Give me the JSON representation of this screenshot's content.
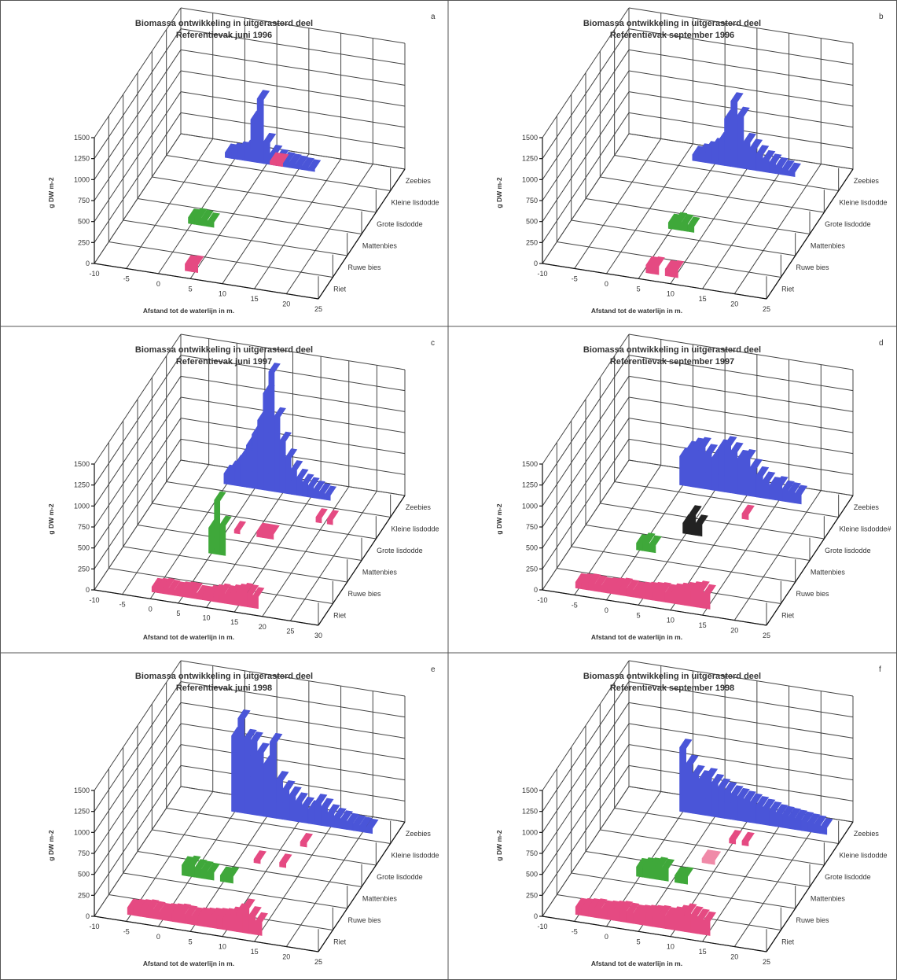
{
  "chart_data": [
    {
      "type": "bar3d",
      "panel_label": "a",
      "title": [
        "Biomassa ontwikkeling in uitgerasterd deel",
        "Referentievak juni 1996"
      ],
      "xlabel": "Afstand tot de waterlijn in m.",
      "ylabel": "g DW m-2",
      "xticks": [
        "-10",
        "-5",
        "0",
        "5",
        "10",
        "15",
        "20",
        "25"
      ],
      "zticks": [
        "0",
        "250",
        "500",
        "750",
        "1000",
        "1250",
        "1500"
      ],
      "depth_categories": [
        "Riet",
        "Ruwe bies",
        "Mattenbies",
        "Grote lisdodde",
        "Kleine lisdodde",
        "Zeebies"
      ],
      "series": [
        {
          "species": "Zeebies",
          "color": "#4a55d8",
          "x": [
            -1,
            0,
            1,
            2,
            3,
            4,
            5,
            6,
            7,
            8,
            9,
            10,
            11,
            12
          ],
          "values": [
            60,
            80,
            110,
            140,
            500,
            760,
            260,
            130,
            90,
            70,
            60,
            50,
            40,
            30
          ]
        },
        {
          "species": "Zeebies",
          "color": "#e54a82",
          "x": [
            6,
            7
          ],
          "values": [
            40,
            40
          ]
        },
        {
          "species": "Mattenbies",
          "color": "#3fa83a",
          "x": [
            0,
            1,
            2,
            3
          ],
          "values": [
            70,
            90,
            80,
            60
          ]
        },
        {
          "species": "Riet",
          "color": "#e54a82",
          "x": [
            4,
            5
          ],
          "values": [
            80,
            90
          ]
        }
      ]
    },
    {
      "type": "bar3d",
      "panel_label": "b",
      "title": [
        "Biomassa ontwikkeling in uitgerasterd deel",
        "Referentievak september 1996"
      ],
      "xlabel": "Afstand tot de waterlijn in m.",
      "ylabel": "g DW m-2",
      "xticks": [
        "-10",
        "-5",
        "0",
        "5",
        "10",
        "15",
        "20",
        "25"
      ],
      "zticks": [
        "0",
        "250",
        "500",
        "750",
        "1000",
        "1250",
        "1500"
      ],
      "depth_categories": [
        "Riet",
        "Ruwe bies",
        "Mattenbies",
        "Grote lisdodde",
        "Kleine lisdodde",
        "Zeebies"
      ],
      "series": [
        {
          "species": "Zeebies",
          "color": "#4a55d8",
          "x": [
            2,
            3,
            4,
            5,
            6,
            7,
            8,
            9,
            10,
            11,
            12,
            13,
            14,
            15,
            16,
            17
          ],
          "values": [
            70,
            110,
            150,
            200,
            280,
            560,
            780,
            620,
            320,
            260,
            200,
            150,
            120,
            90,
            70,
            50
          ]
        },
        {
          "species": "Mattenbies",
          "color": "#3fa83a",
          "x": [
            5,
            6,
            7,
            8
          ],
          "values": [
            70,
            100,
            90,
            70
          ]
        },
        {
          "species": "Riet",
          "color": "#e54a82",
          "x": [
            6,
            7,
            9,
            10
          ],
          "values": [
            90,
            100,
            80,
            90
          ]
        }
      ]
    },
    {
      "type": "bar3d",
      "panel_label": "c",
      "title": [
        "Biomassa ontwikkeling in uitgerasterd deel",
        "Referentievak juni 1997"
      ],
      "xlabel": "Afstand tot de waterlijn in m.",
      "ylabel": "g DW m-2",
      "xticks": [
        "-10",
        "-5",
        "0",
        "5",
        "10",
        "15",
        "20",
        "25",
        "30"
      ],
      "zticks": [
        "0",
        "250",
        "500",
        "750",
        "1000",
        "1250",
        "1500"
      ],
      "depth_categories": [
        "Riet",
        "Ruwe bies",
        "Mattenbies",
        "Grote lisdodde",
        "Kleine lisdodde",
        "Zeebies"
      ],
      "series": [
        {
          "species": "Zeebies",
          "color": "#4a55d8",
          "x": [
            0,
            1,
            2,
            3,
            4,
            5,
            6,
            7,
            8,
            9,
            10,
            11,
            12,
            13,
            14,
            15,
            16,
            17,
            18
          ],
          "values": [
            120,
            180,
            260,
            360,
            500,
            640,
            820,
            1150,
            1420,
            900,
            620,
            430,
            300,
            210,
            160,
            130,
            100,
            80,
            60
          ]
        },
        {
          "species": "Kleine lisdodde",
          "color": "#e54a82",
          "x": [
            19,
            21
          ],
          "values": [
            60,
            60
          ]
        },
        {
          "species": "Grote lisdodde",
          "color": "#e54a82",
          "x": [
            7,
            11,
            12,
            13
          ],
          "values": [
            40,
            60,
            60,
            60
          ]
        },
        {
          "species": "Mattenbies",
          "color": "#3fa83a",
          "x": [
            5,
            6,
            7
          ],
          "values": [
            300,
            640,
            360
          ]
        },
        {
          "species": "Riet",
          "color": "#e54a82",
          "x": [
            0,
            1,
            2,
            3,
            4,
            5,
            6,
            7,
            8,
            9,
            10,
            11,
            12,
            13,
            14,
            15,
            16,
            17,
            18
          ],
          "values": [
            60,
            70,
            80,
            70,
            60,
            70,
            80,
            80,
            60,
            60,
            80,
            100,
            120,
            110,
            130,
            150,
            170,
            160,
            140
          ]
        }
      ]
    },
    {
      "type": "bar3d",
      "panel_label": "d",
      "title": [
        "Biomassa ontwikkeling in uitgerasterd deel",
        "Referentievak september 1997"
      ],
      "xlabel": "Afstand tot de waterlijn in m.",
      "ylabel": "g DW m-2",
      "xticks": [
        "-10",
        "-5",
        "0",
        "5",
        "10",
        "15",
        "20",
        "25"
      ],
      "zticks": [
        "0",
        "250",
        "500",
        "750",
        "1000",
        "1250",
        "1500"
      ],
      "depth_categories": [
        "Riet",
        "Ruwe bies",
        "Mattenbies",
        "Grote lisdodde",
        "Kleine lisdodde#",
        "Zeebies"
      ],
      "series": [
        {
          "species": "Zeebies",
          "color": "#4a55d8",
          "x": [
            0,
            1,
            2,
            3,
            4,
            5,
            6,
            7,
            8,
            9,
            10,
            11,
            12,
            13,
            14,
            15,
            16,
            17,
            18
          ],
          "values": [
            340,
            430,
            480,
            500,
            430,
            380,
            510,
            560,
            500,
            420,
            440,
            340,
            260,
            210,
            160,
            180,
            140,
            130,
            110
          ]
        },
        {
          "species": "Kleine lisdodde#",
          "color": "#e54a82",
          "x": [
            12
          ],
          "values": [
            60
          ]
        },
        {
          "species": "Grote lisdodde",
          "color": "#222222",
          "x": [
            5,
            6,
            7
          ],
          "values": [
            120,
            240,
            140
          ]
        },
        {
          "species": "Mattenbies",
          "color": "#3fa83a",
          "x": [
            0,
            1,
            2
          ],
          "values": [
            80,
            110,
            90
          ]
        },
        {
          "species": "Riet",
          "color": "#e54a82",
          "x": [
            -5,
            -4,
            -3,
            -2,
            -1,
            0,
            1,
            2,
            3,
            4,
            5,
            6,
            7,
            8,
            9,
            10,
            11,
            12,
            13,
            14,
            15
          ],
          "values": [
            70,
            80,
            90,
            80,
            70,
            80,
            90,
            100,
            90,
            80,
            90,
            100,
            110,
            120,
            110,
            130,
            150,
            170,
            190,
            210,
            180
          ]
        }
      ]
    },
    {
      "type": "bar3d",
      "panel_label": "e",
      "title": [
        "Biomassa ontwikkeling in uitgerasterd deel",
        "Referentievak juni 1998"
      ],
      "xlabel": "Afstand tot de waterlijn in m.",
      "ylabel": "g DW m-2",
      "xticks": [
        "-10",
        "-5",
        "0",
        "5",
        "10",
        "15",
        "20",
        "25"
      ],
      "zticks": [
        "0",
        "250",
        "500",
        "750",
        "1000",
        "1250",
        "1500"
      ],
      "depth_categories": [
        "Riet",
        "Ruwe bies",
        "Mattenbies",
        "Grote lisdodde",
        "Kleine lisdodde",
        "Zeebies"
      ],
      "series": [
        {
          "species": "Zeebies",
          "color": "#4a55d8",
          "x": [
            0,
            1,
            2,
            3,
            4,
            5,
            6,
            7,
            8,
            9,
            10,
            11,
            12,
            13,
            14,
            15,
            16,
            17,
            18,
            19,
            20,
            21
          ],
          "values": [
            900,
            1120,
            900,
            880,
            760,
            620,
            900,
            460,
            360,
            300,
            240,
            200,
            170,
            260,
            220,
            160,
            130,
            110,
            90,
            80,
            70,
            60
          ]
        },
        {
          "species": "Kleine lisdodde",
          "color": "#e54a82",
          "x": [
            13
          ],
          "values": [
            50
          ]
        },
        {
          "species": "Grote lisdodde",
          "color": "#e54a82",
          "x": [
            8,
            12
          ],
          "values": [
            40,
            50
          ]
        },
        {
          "species": "Mattenbies",
          "color": "#3fa83a",
          "x": [
            -1,
            0,
            1,
            2,
            3,
            5,
            6
          ],
          "values": [
            120,
            140,
            110,
            100,
            90,
            70,
            80
          ]
        },
        {
          "species": "Riet",
          "color": "#e54a82",
          "x": [
            -5,
            -4,
            -3,
            -2,
            -1,
            0,
            1,
            2,
            3,
            4,
            5,
            6,
            7,
            8,
            9,
            10,
            11,
            12,
            13,
            14,
            15
          ],
          "values": [
            80,
            90,
            100,
            110,
            100,
            90,
            100,
            110,
            120,
            110,
            100,
            110,
            120,
            130,
            140,
            150,
            180,
            230,
            300,
            220,
            160
          ]
        }
      ]
    },
    {
      "type": "bar3d",
      "panel_label": "f",
      "title": [
        "Biomassa ontwikkeling in uitgerasterd deel",
        "Referentievak september 1998"
      ],
      "xlabel": "Afstand tot de waterlijn in m.",
      "ylabel": "g DW m-2",
      "xticks": [
        "-10",
        "-5",
        "0",
        "5",
        "10",
        "15",
        "20",
        "25"
      ],
      "zticks": [
        "0",
        "250",
        "500",
        "750",
        "1000",
        "1250",
        "1500"
      ],
      "depth_categories": [
        "Riet",
        "Ruwe bies",
        "Mattenbies",
        "Grote lisdodde",
        "Kleine lisdodde",
        "Zeebies"
      ],
      "series": [
        {
          "species": "Zeebies",
          "color": "#4a55d8",
          "x": [
            0,
            1,
            2,
            3,
            4,
            5,
            6,
            7,
            8,
            9,
            10,
            11,
            12,
            13,
            14,
            15,
            16,
            17,
            18,
            19,
            20,
            21,
            22
          ],
          "values": [
            760,
            580,
            470,
            420,
            460,
            400,
            360,
            330,
            300,
            280,
            260,
            240,
            220,
            200,
            180,
            160,
            150,
            140,
            130,
            120,
            110,
            100,
            80
          ]
        },
        {
          "species": "Kleine lisdodde",
          "color": "#e54a82",
          "x": [
            10,
            12
          ],
          "values": [
            50,
            50
          ]
        },
        {
          "species": "Grote lisdodde",
          "color": "#f08aa8",
          "x": [
            8,
            9
          ],
          "values": [
            50,
            50
          ]
        },
        {
          "species": "Mattenbies",
          "color": "#3fa83a",
          "x": [
            0,
            1,
            2,
            3,
            4,
            6,
            7
          ],
          "values": [
            110,
            130,
            140,
            160,
            150,
            80,
            90
          ]
        },
        {
          "species": "Riet",
          "color": "#e54a82",
          "x": [
            -5,
            -4,
            -3,
            -2,
            -1,
            0,
            1,
            2,
            3,
            4,
            5,
            6,
            7,
            8,
            9,
            10,
            11,
            12,
            13,
            14,
            15
          ],
          "values": [
            90,
            100,
            110,
            120,
            110,
            120,
            130,
            140,
            130,
            120,
            130,
            140,
            150,
            160,
            150,
            170,
            200,
            230,
            210,
            190,
            170
          ]
        }
      ]
    }
  ]
}
